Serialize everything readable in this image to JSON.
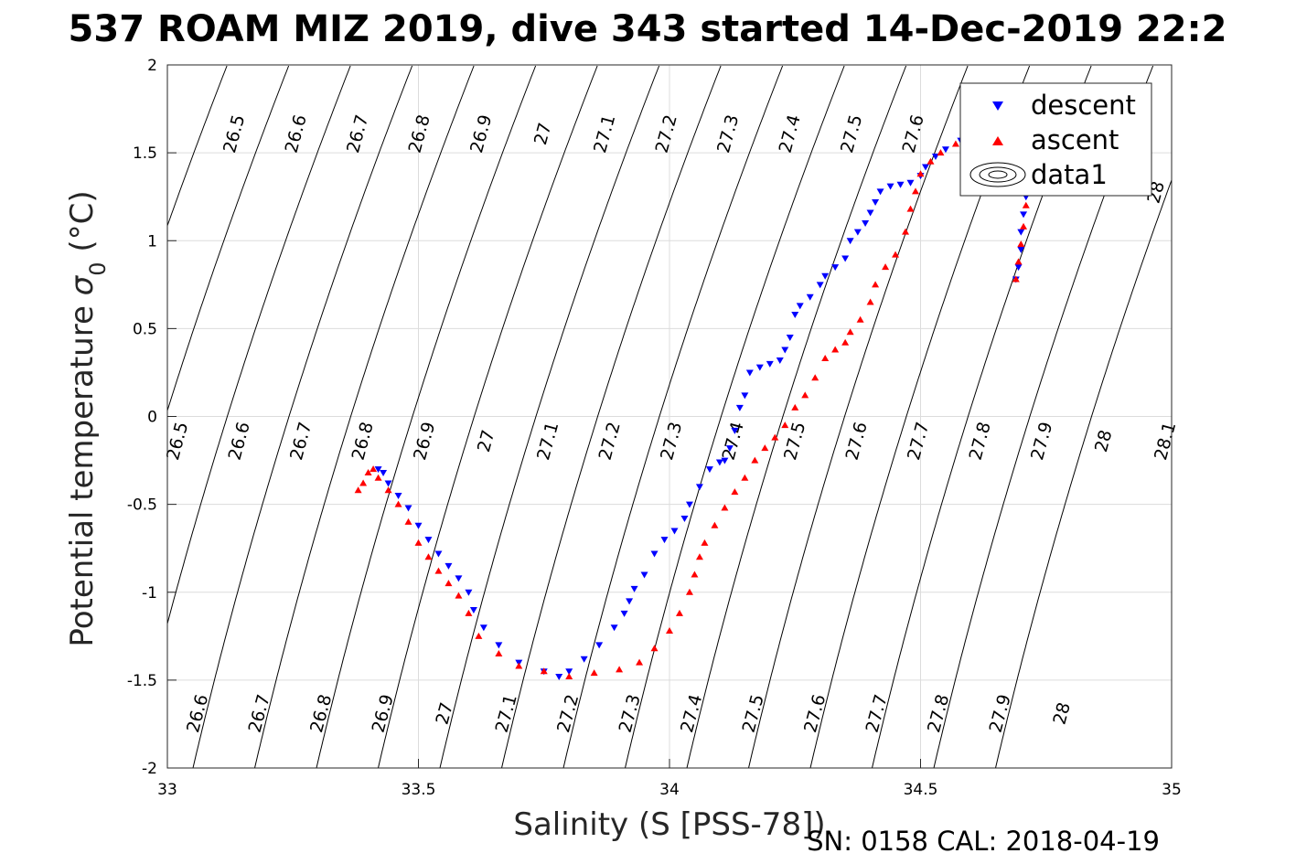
{
  "chart_data": {
    "type": "scatter",
    "title": "537 ROAM MIZ 2019, dive 343 started 14-Dec-2019 22:2",
    "xlabel": "Salinity (S [PSS-78])",
    "ylabel_main": "Potential temperature ",
    "ylabel_sigma": "σ",
    "ylabel_sub": "0",
    "ylabel_unit": " (°C)",
    "xlim": [
      33,
      35
    ],
    "ylim": [
      -2,
      2
    ],
    "xticks": [
      "33",
      "33.5",
      "34",
      "34.5",
      "35"
    ],
    "xtick_values": [
      33,
      33.5,
      34,
      34.5,
      35
    ],
    "yticks": [
      "-2",
      "-1.5",
      "-1",
      "-0.5",
      "0",
      "0.5",
      "1",
      "1.5",
      "2"
    ],
    "ytick_values": [
      -2,
      -1.5,
      -1,
      -0.5,
      0,
      0.5,
      1,
      1.5,
      2
    ],
    "grid": true,
    "legend_position": "top-right",
    "footer": "SN: 0158  CAL: 2018-04-19",
    "series": [
      {
        "name": "descent",
        "marker": "triangle-down",
        "color": "#0000ff",
        "points": [
          [
            34.69,
            0.78
          ],
          [
            34.695,
            0.85
          ],
          [
            34.7,
            0.95
          ],
          [
            34.7,
            1.05
          ],
          [
            34.705,
            1.15
          ],
          [
            34.71,
            1.25
          ],
          [
            34.69,
            1.35
          ],
          [
            34.65,
            1.42
          ],
          [
            34.62,
            1.48
          ],
          [
            34.6,
            1.53
          ],
          [
            34.58,
            1.57
          ],
          [
            34.55,
            1.52
          ],
          [
            34.53,
            1.48
          ],
          [
            34.51,
            1.42
          ],
          [
            34.5,
            1.37
          ],
          [
            34.48,
            1.33
          ],
          [
            34.46,
            1.32
          ],
          [
            34.44,
            1.31
          ],
          [
            34.42,
            1.28
          ],
          [
            34.41,
            1.22
          ],
          [
            34.4,
            1.16
          ],
          [
            34.39,
            1.1
          ],
          [
            34.375,
            1.05
          ],
          [
            34.36,
            1.0
          ],
          [
            34.35,
            0.9
          ],
          [
            34.33,
            0.85
          ],
          [
            34.31,
            0.8
          ],
          [
            34.3,
            0.75
          ],
          [
            34.28,
            0.68
          ],
          [
            34.26,
            0.63
          ],
          [
            34.25,
            0.58
          ],
          [
            34.24,
            0.45
          ],
          [
            34.23,
            0.38
          ],
          [
            34.22,
            0.32
          ],
          [
            34.2,
            0.3
          ],
          [
            34.18,
            0.28
          ],
          [
            34.16,
            0.25
          ],
          [
            34.15,
            0.12
          ],
          [
            34.14,
            0.05
          ],
          [
            34.13,
            -0.08
          ],
          [
            34.12,
            -0.18
          ],
          [
            34.11,
            -0.25
          ],
          [
            34.1,
            -0.26
          ],
          [
            34.08,
            -0.3
          ],
          [
            34.06,
            -0.4
          ],
          [
            34.04,
            -0.5
          ],
          [
            34.03,
            -0.58
          ],
          [
            34.01,
            -0.65
          ],
          [
            33.99,
            -0.7
          ],
          [
            33.97,
            -0.78
          ],
          [
            33.95,
            -0.9
          ],
          [
            33.93,
            -0.98
          ],
          [
            33.92,
            -1.05
          ],
          [
            33.91,
            -1.12
          ],
          [
            33.89,
            -1.2
          ],
          [
            33.86,
            -1.3
          ],
          [
            33.83,
            -1.38
          ],
          [
            33.8,
            -1.45
          ],
          [
            33.78,
            -1.48
          ],
          [
            33.75,
            -1.45
          ],
          [
            33.7,
            -1.4
          ],
          [
            33.66,
            -1.3
          ],
          [
            33.63,
            -1.2
          ],
          [
            33.61,
            -1.1
          ],
          [
            33.6,
            -1.0
          ],
          [
            33.58,
            -0.92
          ],
          [
            33.56,
            -0.85
          ],
          [
            33.54,
            -0.78
          ],
          [
            33.52,
            -0.7
          ],
          [
            33.5,
            -0.62
          ],
          [
            33.48,
            -0.52
          ],
          [
            33.46,
            -0.45
          ],
          [
            33.44,
            -0.38
          ],
          [
            33.43,
            -0.32
          ],
          [
            33.42,
            -0.3
          ]
        ]
      },
      {
        "name": "ascent",
        "marker": "triangle-up",
        "color": "#ff0000",
        "points": [
          [
            34.69,
            0.78
          ],
          [
            34.695,
            0.88
          ],
          [
            34.7,
            0.98
          ],
          [
            34.705,
            1.08
          ],
          [
            34.71,
            1.2
          ],
          [
            34.69,
            1.32
          ],
          [
            34.66,
            1.4
          ],
          [
            34.63,
            1.47
          ],
          [
            34.6,
            1.52
          ],
          [
            34.57,
            1.55
          ],
          [
            34.54,
            1.5
          ],
          [
            34.52,
            1.45
          ],
          [
            34.5,
            1.38
          ],
          [
            34.49,
            1.28
          ],
          [
            34.48,
            1.18
          ],
          [
            34.47,
            1.05
          ],
          [
            34.45,
            0.92
          ],
          [
            34.43,
            0.85
          ],
          [
            34.41,
            0.75
          ],
          [
            34.4,
            0.65
          ],
          [
            34.38,
            0.55
          ],
          [
            34.36,
            0.48
          ],
          [
            34.35,
            0.42
          ],
          [
            34.33,
            0.38
          ],
          [
            34.31,
            0.33
          ],
          [
            34.29,
            0.22
          ],
          [
            34.27,
            0.12
          ],
          [
            34.25,
            0.05
          ],
          [
            34.23,
            -0.05
          ],
          [
            34.21,
            -0.12
          ],
          [
            34.19,
            -0.18
          ],
          [
            34.17,
            -0.25
          ],
          [
            34.15,
            -0.35
          ],
          [
            34.13,
            -0.43
          ],
          [
            34.11,
            -0.52
          ],
          [
            34.09,
            -0.62
          ],
          [
            34.07,
            -0.72
          ],
          [
            34.06,
            -0.8
          ],
          [
            34.05,
            -0.9
          ],
          [
            34.04,
            -1.0
          ],
          [
            34.02,
            -1.12
          ],
          [
            34.0,
            -1.22
          ],
          [
            33.97,
            -1.32
          ],
          [
            33.94,
            -1.4
          ],
          [
            33.9,
            -1.44
          ],
          [
            33.85,
            -1.46
          ],
          [
            33.8,
            -1.48
          ],
          [
            33.75,
            -1.45
          ],
          [
            33.7,
            -1.42
          ],
          [
            33.66,
            -1.35
          ],
          [
            33.62,
            -1.25
          ],
          [
            33.6,
            -1.12
          ],
          [
            33.58,
            -1.02
          ],
          [
            33.56,
            -0.95
          ],
          [
            33.54,
            -0.88
          ],
          [
            33.52,
            -0.8
          ],
          [
            33.5,
            -0.72
          ],
          [
            33.48,
            -0.6
          ],
          [
            33.46,
            -0.5
          ],
          [
            33.44,
            -0.42
          ],
          [
            33.42,
            -0.35
          ],
          [
            33.41,
            -0.3
          ],
          [
            33.4,
            -0.32
          ],
          [
            33.39,
            -0.38
          ],
          [
            33.38,
            -0.42
          ]
        ]
      }
    ],
    "legend": [
      "descent",
      "ascent",
      "data1"
    ],
    "density_contours": {
      "name": "data1",
      "labels_top": [
        "26.5",
        "26.6",
        "26.7",
        "26.8",
        "26.9",
        "27",
        "27.1",
        "27.2",
        "27.3",
        "27.4",
        "27.5",
        "27.6",
        "28"
      ],
      "labels_mid": [
        "26.5",
        "26.6",
        "26.7",
        "26.8",
        "26.9",
        "27",
        "27.1",
        "27.2",
        "27.3",
        "27.4",
        "27.5",
        "27.6",
        "27.7",
        "27.8",
        "27.9",
        "28",
        "28.1"
      ],
      "labels_bottom": [
        "26.6",
        "26.7",
        "26.8",
        "26.9",
        "27",
        "27.1",
        "27.2",
        "27.3",
        "27.4",
        "27.5",
        "27.6",
        "27.7",
        "27.8",
        "27.9",
        "28"
      ]
    }
  }
}
